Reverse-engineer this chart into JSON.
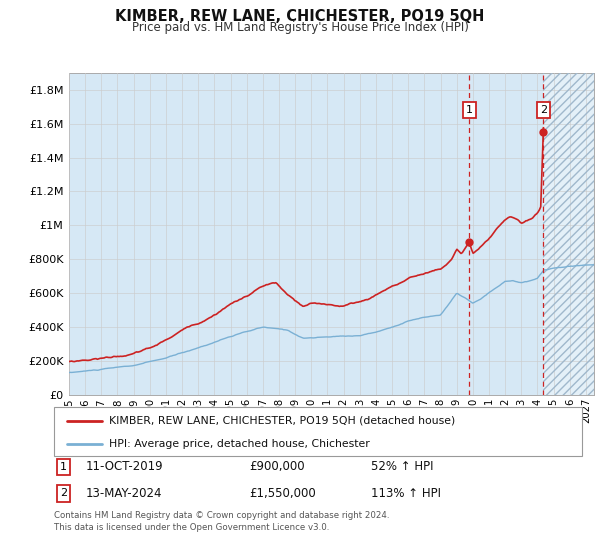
{
  "title": "KIMBER, REW LANE, CHICHESTER, PO19 5QH",
  "subtitle": "Price paid vs. HM Land Registry's House Price Index (HPI)",
  "legend_line1": "KIMBER, REW LANE, CHICHESTER, PO19 5QH (detached house)",
  "legend_line2": "HPI: Average price, detached house, Chichester",
  "annotation1_date": "11-OCT-2019",
  "annotation1_price": "£900,000",
  "annotation1_hpi": "52% ↑ HPI",
  "annotation1_value": 900000,
  "annotation1_year": 2019.78,
  "annotation2_date": "13-MAY-2024",
  "annotation2_price": "£1,550,000",
  "annotation2_hpi": "113% ↑ HPI",
  "annotation2_value": 1550000,
  "annotation2_year": 2024.37,
  "hpi_color": "#7ab0d4",
  "hpi_fill_color": "#d6e8f5",
  "price_color": "#cc2222",
  "dashed_color": "#cc2222",
  "future_shade_color": "#daeaf5",
  "hatch_color": "#a0b8cc",
  "grid_color": "#cccccc",
  "background_color": "#ffffff",
  "ylim": [
    0,
    1900000
  ],
  "xlim_start": 1995,
  "xlim_end": 2027.5,
  "future_shade_start": 2024.37,
  "future_shade_end": 2027.5,
  "vline1_x": 2019.78,
  "vline2_x": 2024.37,
  "footnote": "Contains HM Land Registry data © Crown copyright and database right 2024.\nThis data is licensed under the Open Government Licence v3.0.",
  "xtick_years": [
    1995,
    1996,
    1997,
    1998,
    1999,
    2000,
    2001,
    2002,
    2003,
    2004,
    2005,
    2006,
    2007,
    2008,
    2009,
    2010,
    2011,
    2012,
    2013,
    2014,
    2015,
    2016,
    2017,
    2018,
    2019,
    2020,
    2021,
    2022,
    2023,
    2024,
    2025,
    2026,
    2027
  ]
}
